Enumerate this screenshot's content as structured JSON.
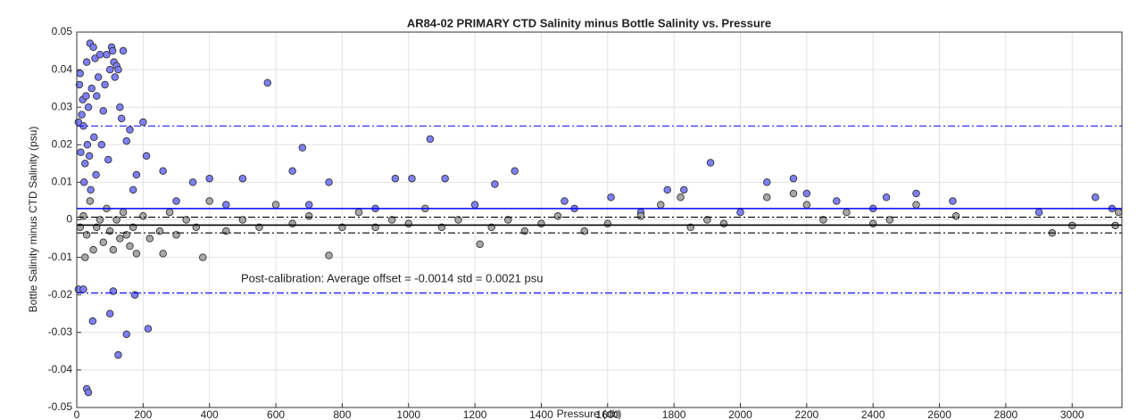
{
  "chart_data": {
    "type": "scatter",
    "title": "AR84-02 PRIMARY CTD Salinity minus Bottle Salinity vs. Pressure",
    "xlabel": "Pressure (db)",
    "ylabel": "Bottle Salinity minus CTD Salinity (psu)",
    "annotation": "Post-calibration: Average offset = -0.0014 std = 0.0021 psu",
    "xlim": [
      0,
      3150
    ],
    "ylim": [
      -0.05,
      0.05
    ],
    "xticks": [
      0,
      200,
      400,
      600,
      800,
      1000,
      1200,
      1400,
      1600,
      1800,
      2000,
      2200,
      2400,
      2600,
      2800,
      3000
    ],
    "yticks": [
      -0.05,
      -0.04,
      -0.03,
      -0.02,
      -0.01,
      0,
      0.01,
      0.02,
      0.03,
      0.04,
      0.05
    ],
    "grid": true,
    "lines": [
      {
        "value": 0.003,
        "color": "#0000ff",
        "style": "solid"
      },
      {
        "value": 0.025,
        "color": "#0000ff",
        "style": "dashdot"
      },
      {
        "value": -0.0195,
        "color": "#0000ff",
        "style": "dashdot"
      },
      {
        "value": -0.0014,
        "color": "#000000",
        "style": "solid"
      },
      {
        "value": 0.0007,
        "color": "#000000",
        "style": "dashdot"
      },
      {
        "value": -0.0035,
        "color": "#000000",
        "style": "dashdot"
      }
    ],
    "series": [
      {
        "color": "#7f7ff7",
        "x": [
          5,
          8,
          10,
          12,
          15,
          18,
          20,
          22,
          25,
          28,
          30,
          32,
          35,
          38,
          40,
          42,
          45,
          48,
          50,
          52,
          55,
          58,
          60,
          65,
          70,
          75,
          80,
          85,
          90,
          95,
          100,
          105,
          108,
          112,
          115,
          120,
          125,
          130,
          135,
          140,
          150,
          160,
          170,
          180,
          200,
          210,
          5,
          20,
          30,
          35,
          110,
          100,
          125,
          150,
          175,
          215,
          575,
          680,
          1065,
          1910,
          260,
          350,
          400,
          500,
          650,
          760,
          960,
          1010,
          1110,
          1260,
          1320,
          1470,
          1610,
          1780,
          1830,
          2080,
          2160,
          2200,
          2290,
          2440,
          2530,
          2640,
          3070,
          3120,
          700,
          900,
          1200,
          1500,
          2000,
          2400,
          2900,
          300,
          450,
          1700
        ],
        "values": [
          0.026,
          0.036,
          0.039,
          0.018,
          0.028,
          0.032,
          0.025,
          0.01,
          0.015,
          0.033,
          0.042,
          0.02,
          0.03,
          0.017,
          0.047,
          0.008,
          0.035,
          -0.027,
          0.046,
          0.022,
          0.043,
          0.012,
          0.033,
          0.038,
          0.044,
          0.02,
          0.029,
          0.036,
          0.044,
          0.016,
          0.04,
          0.046,
          0.045,
          0.042,
          0.038,
          0.041,
          0.04,
          0.03,
          0.027,
          0.045,
          0.021,
          0.024,
          0.008,
          0.012,
          0.026,
          0.017,
          -0.0185,
          -0.0185,
          -0.045,
          -0.046,
          -0.019,
          -0.025,
          -0.036,
          -0.0305,
          -0.02,
          -0.029,
          0.0365,
          0.0192,
          0.0215,
          0.0152,
          0.013,
          0.01,
          0.011,
          0.011,
          0.013,
          0.01,
          0.011,
          0.011,
          0.011,
          0.0095,
          0.013,
          0.005,
          0.006,
          0.008,
          0.008,
          0.01,
          0.011,
          0.007,
          0.005,
          0.006,
          0.007,
          0.005,
          0.006,
          0.003,
          0.004,
          0.003,
          0.004,
          0.003,
          0.002,
          0.003,
          0.002,
          0.005,
          0.004,
          0.002
        ]
      },
      {
        "color": "#a8a8a8",
        "x": [
          10,
          20,
          25,
          30,
          40,
          50,
          60,
          70,
          80,
          90,
          100,
          110,
          120,
          130,
          140,
          150,
          160,
          170,
          180,
          200,
          220,
          250,
          260,
          280,
          300,
          330,
          360,
          380,
          400,
          450,
          500,
          550,
          600,
          650,
          700,
          760,
          800,
          850,
          900,
          950,
          1000,
          1050,
          1100,
          1150,
          1215,
          1250,
          1300,
          1350,
          1400,
          1450,
          1530,
          1600,
          1700,
          1760,
          1820,
          1850,
          1900,
          1950,
          2080,
          2160,
          2200,
          2250,
          2320,
          2400,
          2450,
          2530,
          2650,
          2940,
          3000,
          3130,
          3140
        ],
        "values": [
          -0.002,
          0.001,
          -0.01,
          -0.004,
          0.005,
          -0.008,
          -0.002,
          0,
          -0.006,
          0.003,
          -0.003,
          -0.008,
          0,
          -0.005,
          0.002,
          -0.004,
          -0.007,
          -0.002,
          -0.009,
          0.001,
          -0.005,
          -0.003,
          -0.009,
          0.002,
          -0.004,
          0,
          -0.002,
          -0.01,
          0.005,
          -0.003,
          0,
          -0.002,
          0.004,
          -0.001,
          0.001,
          -0.0095,
          -0.002,
          0.002,
          -0.002,
          0,
          -0.001,
          0.003,
          -0.002,
          0,
          -0.0065,
          -0.002,
          0,
          -0.003,
          -0.001,
          0.001,
          -0.003,
          -0.001,
          0.001,
          0.004,
          0.006,
          -0.002,
          0,
          -0.001,
          0.006,
          0.007,
          0.004,
          0,
          0.002,
          -0.001,
          0,
          0.004,
          0.001,
          -0.0035,
          -0.0015,
          -0.0015,
          0.002
        ]
      }
    ]
  }
}
